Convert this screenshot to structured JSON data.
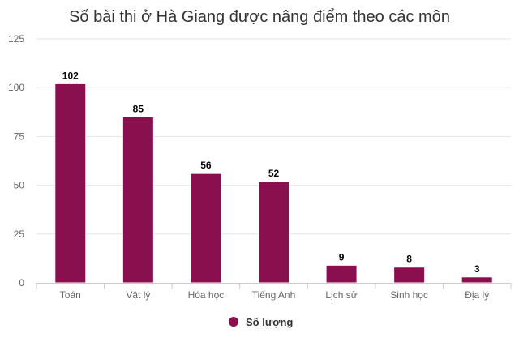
{
  "chart_data": {
    "type": "bar",
    "title": "Số bài thi ở Hà Giang được nâng điểm theo các môn",
    "categories": [
      "Toán",
      "Vật lý",
      "Hóa học",
      "Tiếng Anh",
      "Lịch sử",
      "Sinh học",
      "Địa lý"
    ],
    "series": [
      {
        "name": "Số lượng",
        "values": [
          102,
          85,
          56,
          52,
          9,
          8,
          3
        ],
        "color": "#8a0f4f"
      }
    ],
    "ylim": [
      0,
      125
    ],
    "yticks": [
      0,
      25,
      50,
      75,
      100,
      125
    ],
    "grid": true,
    "legend": "bottom-center"
  }
}
